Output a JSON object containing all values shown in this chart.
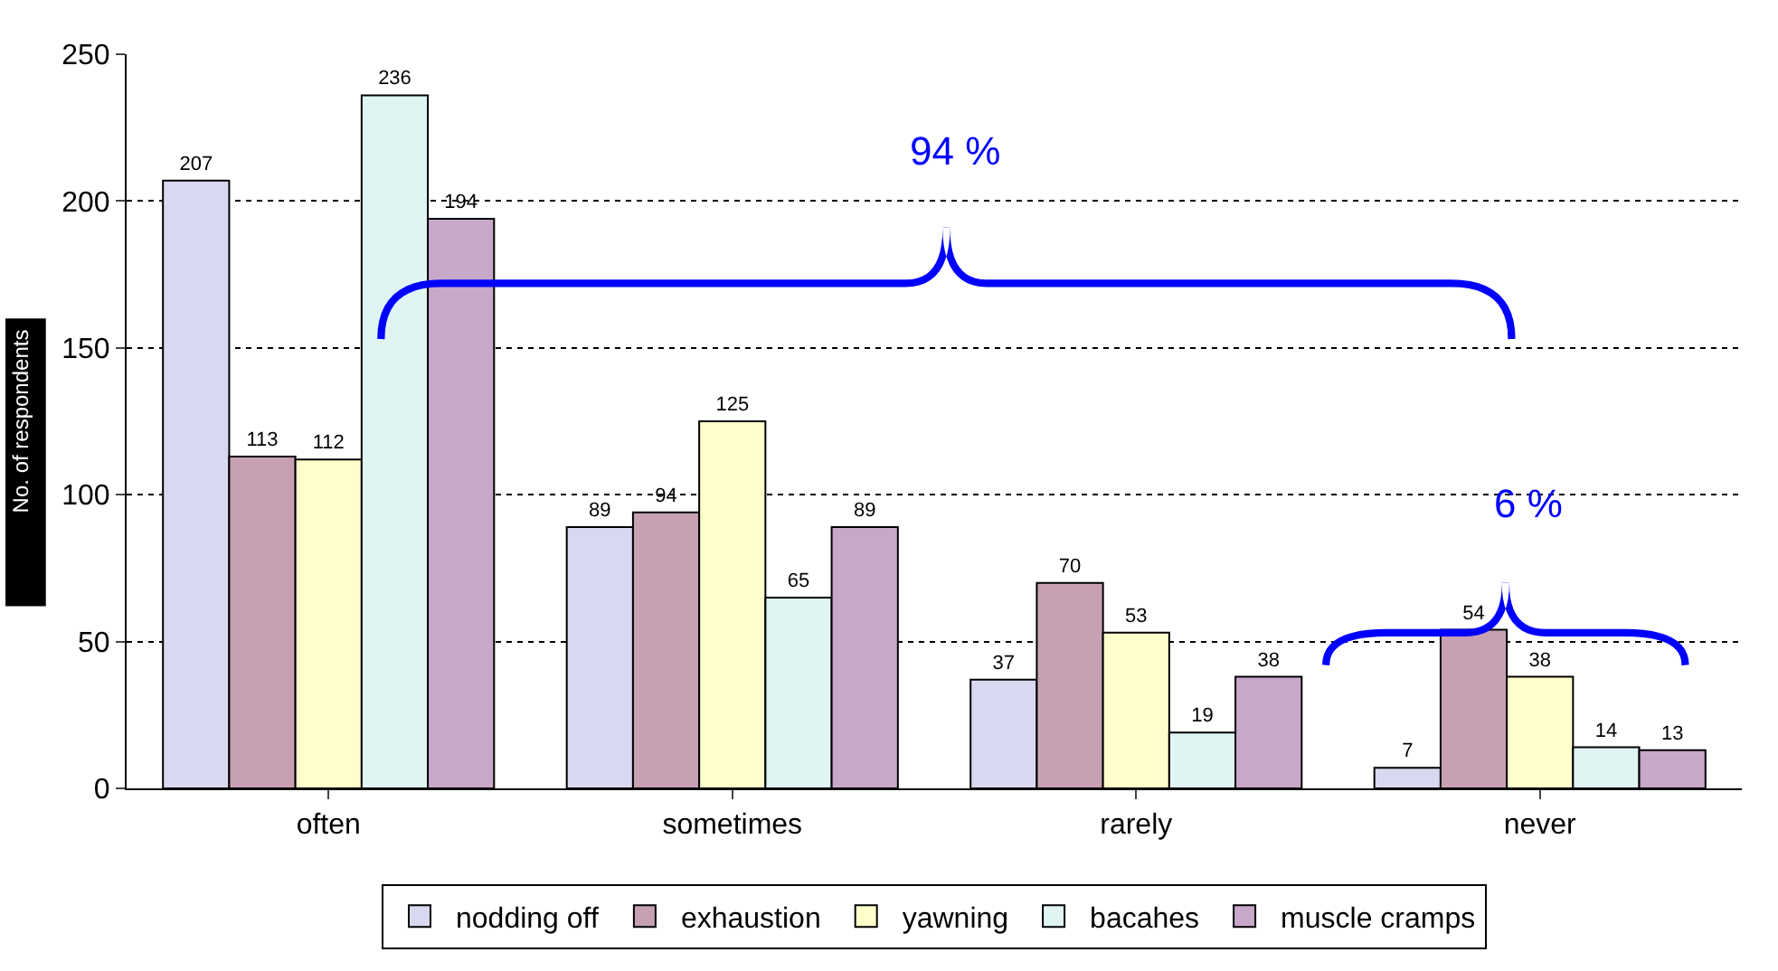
{
  "chart_data": {
    "type": "bar",
    "ylabel": "No. of respondents",
    "categories": [
      "often",
      "sometimes",
      "rarely",
      "never"
    ],
    "series": [
      {
        "name": "nodding off",
        "color": "#d8d8f0",
        "values": [
          207,
          89,
          37,
          7
        ]
      },
      {
        "name": "exhaustion",
        "color": "#c8a0b4",
        "values": [
          113,
          94,
          70,
          54
        ]
      },
      {
        "name": "yawning",
        "color": "#ffffcc",
        "values": [
          112,
          125,
          53,
          38
        ]
      },
      {
        "name": "bacahes",
        "color": "#e0f4f4",
        "values": [
          236,
          65,
          19,
          14
        ]
      },
      {
        "name": "muscle cramps",
        "color": "#c8a8c8",
        "values": [
          194,
          89,
          38,
          13
        ]
      }
    ],
    "ylim": [
      0,
      250
    ],
    "yticks": [
      0,
      50,
      100,
      150,
      200,
      250
    ],
    "grid": "y",
    "data_labels": true,
    "legend": "bottom",
    "annotations": [
      "94 %",
      "6 %"
    ]
  }
}
